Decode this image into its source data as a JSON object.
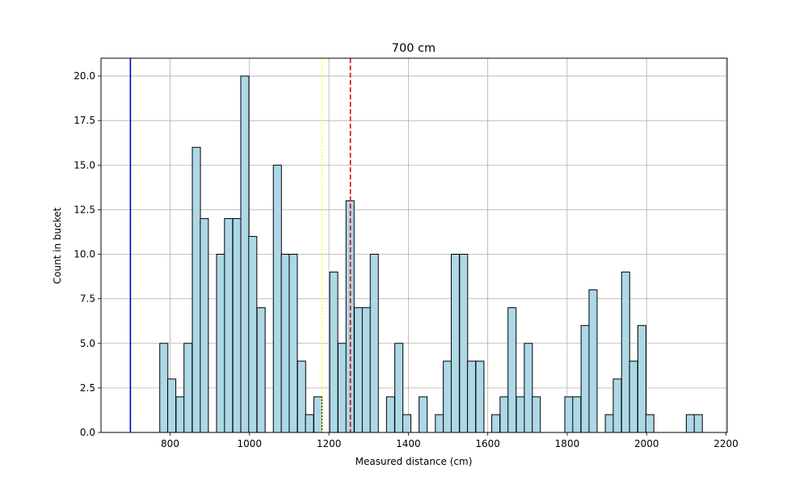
{
  "chart_data": {
    "type": "bar",
    "title": "700 cm",
    "xlabel": "Measured distance (cm)",
    "ylabel": "Count in bucket",
    "xlim": [
      626,
      2203
    ],
    "ylim": [
      0,
      21
    ],
    "grid": true,
    "x_ticks": [
      800,
      1000,
      1200,
      1400,
      1600,
      1800,
      2000,
      2200
    ],
    "y_ticks": [
      0.0,
      2.5,
      5.0,
      7.5,
      10.0,
      12.5,
      15.0,
      17.5,
      20.0
    ],
    "bin_width": 20.4,
    "bins": [
      {
        "x0": 774,
        "count": 5
      },
      {
        "x0": 794,
        "count": 3
      },
      {
        "x0": 815,
        "count": 2
      },
      {
        "x0": 835,
        "count": 5
      },
      {
        "x0": 856,
        "count": 16
      },
      {
        "x0": 876,
        "count": 12
      },
      {
        "x0": 896,
        "count": 0
      },
      {
        "x0": 917,
        "count": 10
      },
      {
        "x0": 937,
        "count": 12
      },
      {
        "x0": 958,
        "count": 12
      },
      {
        "x0": 978,
        "count": 20
      },
      {
        "x0": 998,
        "count": 11
      },
      {
        "x0": 1019,
        "count": 7
      },
      {
        "x0": 1039,
        "count": 0
      },
      {
        "x0": 1060,
        "count": 15
      },
      {
        "x0": 1080,
        "count": 10
      },
      {
        "x0": 1100,
        "count": 10
      },
      {
        "x0": 1121,
        "count": 4
      },
      {
        "x0": 1141,
        "count": 1
      },
      {
        "x0": 1162,
        "count": 2
      },
      {
        "x0": 1182,
        "count": 0
      },
      {
        "x0": 1202,
        "count": 9
      },
      {
        "x0": 1223,
        "count": 5
      },
      {
        "x0": 1243,
        "count": 13
      },
      {
        "x0": 1264,
        "count": 7
      },
      {
        "x0": 1284,
        "count": 7
      },
      {
        "x0": 1304,
        "count": 10
      },
      {
        "x0": 1325,
        "count": 0
      },
      {
        "x0": 1345,
        "count": 2
      },
      {
        "x0": 1366,
        "count": 5
      },
      {
        "x0": 1386,
        "count": 1
      },
      {
        "x0": 1406,
        "count": 0
      },
      {
        "x0": 1427,
        "count": 2
      },
      {
        "x0": 1447,
        "count": 0
      },
      {
        "x0": 1468,
        "count": 1
      },
      {
        "x0": 1488,
        "count": 4
      },
      {
        "x0": 1508,
        "count": 10
      },
      {
        "x0": 1529,
        "count": 10
      },
      {
        "x0": 1549,
        "count": 4
      },
      {
        "x0": 1570,
        "count": 4
      },
      {
        "x0": 1590,
        "count": 0
      },
      {
        "x0": 1610,
        "count": 1
      },
      {
        "x0": 1631,
        "count": 2
      },
      {
        "x0": 1651,
        "count": 7
      },
      {
        "x0": 1672,
        "count": 2
      },
      {
        "x0": 1692,
        "count": 5
      },
      {
        "x0": 1712,
        "count": 2
      },
      {
        "x0": 1733,
        "count": 0
      },
      {
        "x0": 1753,
        "count": 0
      },
      {
        "x0": 1774,
        "count": 0
      },
      {
        "x0": 1794,
        "count": 2
      },
      {
        "x0": 1814,
        "count": 2
      },
      {
        "x0": 1835,
        "count": 6
      },
      {
        "x0": 1855,
        "count": 8
      },
      {
        "x0": 1876,
        "count": 0
      },
      {
        "x0": 1896,
        "count": 1
      },
      {
        "x0": 1916,
        "count": 3
      },
      {
        "x0": 1937,
        "count": 9
      },
      {
        "x0": 1957,
        "count": 4
      },
      {
        "x0": 1978,
        "count": 6
      },
      {
        "x0": 1998,
        "count": 1
      },
      {
        "x0": 2018,
        "count": 0
      },
      {
        "x0": 2039,
        "count": 0
      },
      {
        "x0": 2059,
        "count": 0
      },
      {
        "x0": 2080,
        "count": 0
      },
      {
        "x0": 2100,
        "count": 1
      },
      {
        "x0": 2120,
        "count": 1
      }
    ],
    "reference_lines": [
      {
        "x": 700,
        "style": "solid",
        "color": "#0000cc"
      },
      {
        "x": 1182,
        "style": "dotted",
        "color": "#ffff00"
      },
      {
        "x": 1254,
        "style": "dashed",
        "color": "#dd0000"
      }
    ],
    "bar_color": "#add8e6",
    "bar_edge_color": "#000000"
  }
}
